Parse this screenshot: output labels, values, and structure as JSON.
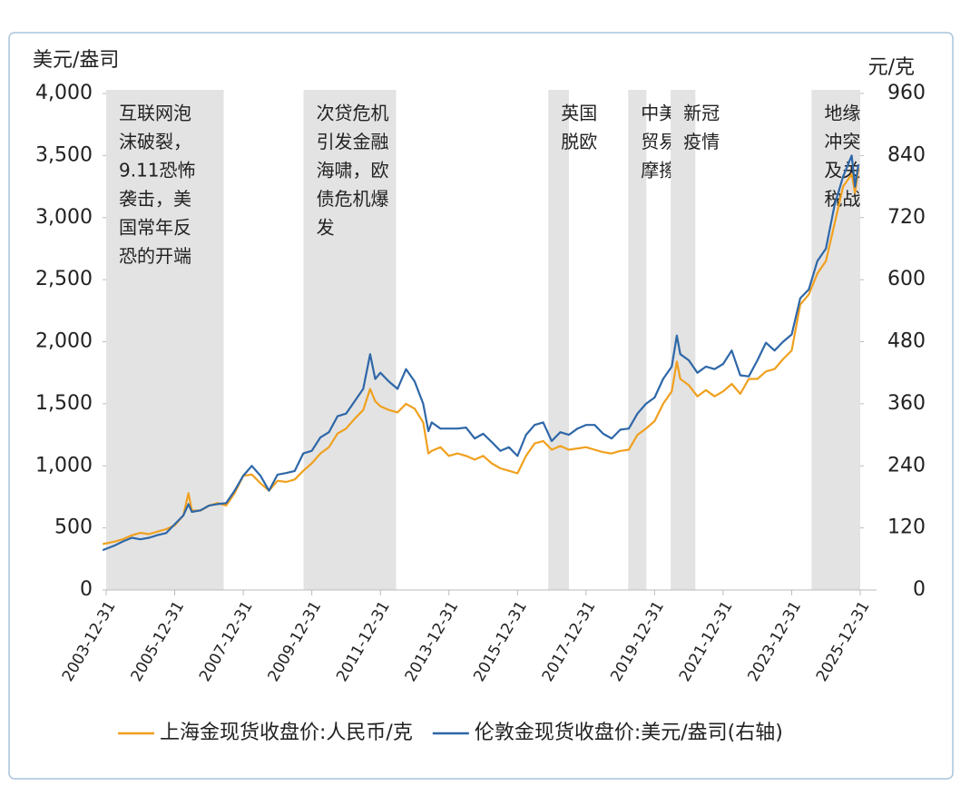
{
  "chart_data": {
    "type": "line",
    "y_label": "美元/盎司",
    "y2_label": "元/克",
    "x": [
      2003.9,
      2004.25,
      2004.5,
      2004.75,
      2005,
      2005.25,
      2005.5,
      2005.75,
      2006,
      2006.25,
      2006.4,
      2006.5,
      2006.75,
      2007,
      2007.25,
      2007.5,
      2007.75,
      2008,
      2008.25,
      2008.5,
      2008.75,
      2009,
      2009.25,
      2009.5,
      2009.75,
      2010,
      2010.25,
      2010.5,
      2010.75,
      2011,
      2011.25,
      2011.5,
      2011.7,
      2011.85,
      2012,
      2012.25,
      2012.5,
      2012.75,
      2013,
      2013.25,
      2013.4,
      2013.5,
      2013.75,
      2014,
      2014.25,
      2014.5,
      2014.75,
      2015,
      2015.25,
      2015.5,
      2015.75,
      2016,
      2016.25,
      2016.5,
      2016.75,
      2017,
      2017.25,
      2017.5,
      2017.75,
      2018,
      2018.25,
      2018.5,
      2018.75,
      2019,
      2019.25,
      2019.5,
      2019.75,
      2020,
      2020.25,
      2020.5,
      2020.65,
      2020.75,
      2021,
      2021.25,
      2021.5,
      2021.75,
      2022,
      2022.25,
      2022.5,
      2022.75,
      2023,
      2023.25,
      2023.5,
      2023.75,
      2024,
      2024.25,
      2024.5,
      2024.75,
      2025,
      2025.25,
      2025.5,
      2025.75,
      2025.85,
      2025.95
    ],
    "series": [
      {
        "name": "上海金现货收盘价:人民币/克",
        "color": "#f0a01e",
        "values": [
          370,
          390,
          410,
          440,
          460,
          450,
          470,
          490,
          520,
          600,
          780,
          640,
          640,
          680,
          700,
          680,
          780,
          920,
          930,
          860,
          800,
          880,
          870,
          890,
          960,
          1020,
          1100,
          1150,
          1260,
          1300,
          1380,
          1450,
          1620,
          1520,
          1480,
          1450,
          1430,
          1500,
          1460,
          1350,
          1100,
          1120,
          1150,
          1080,
          1100,
          1080,
          1050,
          1080,
          1020,
          980,
          960,
          940,
          1080,
          1180,
          1200,
          1130,
          1160,
          1130,
          1140,
          1150,
          1130,
          1110,
          1100,
          1120,
          1130,
          1250,
          1300,
          1360,
          1500,
          1600,
          1840,
          1700,
          1650,
          1560,
          1610,
          1560,
          1600,
          1660,
          1580,
          1700,
          1700,
          1760,
          1780,
          1860,
          1930,
          2300,
          2380,
          2550,
          2650,
          2950,
          3250,
          3350,
          3200,
          3400
        ]
      },
      {
        "name": "伦敦金现货收盘价:美元/盎司(右轴)",
        "color": "#2e67a8",
        "axis": "y2",
        "values": [
          77,
          86,
          94,
          101,
          98,
          101,
          106,
          110,
          127,
          144,
          166,
          151,
          154,
          163,
          166,
          168,
          192,
          221,
          240,
          221,
          192,
          223,
          226,
          230,
          264,
          269,
          295,
          305,
          336,
          341,
          365,
          389,
          456,
          408,
          420,
          403,
          389,
          427,
          403,
          360,
          307,
          324,
          312,
          312,
          312,
          314,
          293,
          302,
          286,
          269,
          276,
          259,
          300,
          319,
          324,
          288,
          305,
          300,
          312,
          319,
          319,
          302,
          293,
          310,
          312,
          341,
          360,
          372,
          408,
          432,
          492,
          456,
          444,
          420,
          432,
          427,
          437,
          463,
          415,
          413,
          444,
          478,
          463,
          480,
          494,
          564,
          581,
          636,
          660,
          744,
          799,
          840,
          780,
          823
        ]
      }
    ],
    "xlim": [
      2004,
      2026
    ],
    "xticks": [
      {
        "value": 2004,
        "label": "2003-12-31"
      },
      {
        "value": 2006,
        "label": "2005-12-31"
      },
      {
        "value": 2008,
        "label": "2007-12-31"
      },
      {
        "value": 2010,
        "label": "2009-12-31"
      },
      {
        "value": 2012,
        "label": "2011-12-31"
      },
      {
        "value": 2014,
        "label": "2013-12-31"
      },
      {
        "value": 2016,
        "label": "2015-12-31"
      },
      {
        "value": 2018,
        "label": "2017-12-31"
      },
      {
        "value": 2020,
        "label": "2019-12-31"
      },
      {
        "value": 2022,
        "label": "2021-12-31"
      },
      {
        "value": 2024,
        "label": "2023-12-31"
      },
      {
        "value": 2026,
        "label": "2025-12-31"
      }
    ],
    "ylim": [
      0,
      4000
    ],
    "yticks": [
      0,
      {
        "value": 500,
        "label": "500"
      },
      {
        "value": 1000,
        "label": "1,000"
      },
      {
        "value": 1500,
        "label": "1,500"
      },
      {
        "value": 2000,
        "label": "2,000"
      },
      {
        "value": 2500,
        "label": "2,500"
      },
      {
        "value": 3000,
        "label": "3,000"
      },
      {
        "value": 3500,
        "label": "3,500"
      },
      {
        "value": 4000,
        "label": "4,000"
      }
    ],
    "y2lim": [
      0,
      960
    ],
    "y2ticks": [
      0,
      120,
      240,
      360,
      480,
      600,
      720,
      840,
      960
    ],
    "shaded_periods": [
      {
        "x": [
          2004,
          2007.43
        ],
        "lines": [
          "互联网泡",
          "沫破裂，",
          "9.11恐怖",
          "袭击，美",
          "国常年反",
          "恐的开端"
        ]
      },
      {
        "x": [
          2009.76,
          2012.46
        ],
        "lines": [
          "次贷危机",
          "引发金融",
          "海啸，欧",
          "债危机爆",
          "发"
        ]
      },
      {
        "x": [
          2016.9,
          2017.5
        ],
        "lines": [
          "英国",
          "脱欧"
        ]
      },
      {
        "x": [
          2019.23,
          2019.76
        ],
        "lines": [
          "中美",
          "贸易",
          "摩擦"
        ]
      },
      {
        "x": [
          2020.47,
          2021.19
        ],
        "lines": [
          "新冠",
          "疫情"
        ]
      },
      {
        "x": [
          2024.58,
          2026
        ],
        "lines": [
          "地缘",
          "冲突",
          "及关",
          "税战"
        ]
      }
    ],
    "shade_color": "#e3e3e3"
  }
}
